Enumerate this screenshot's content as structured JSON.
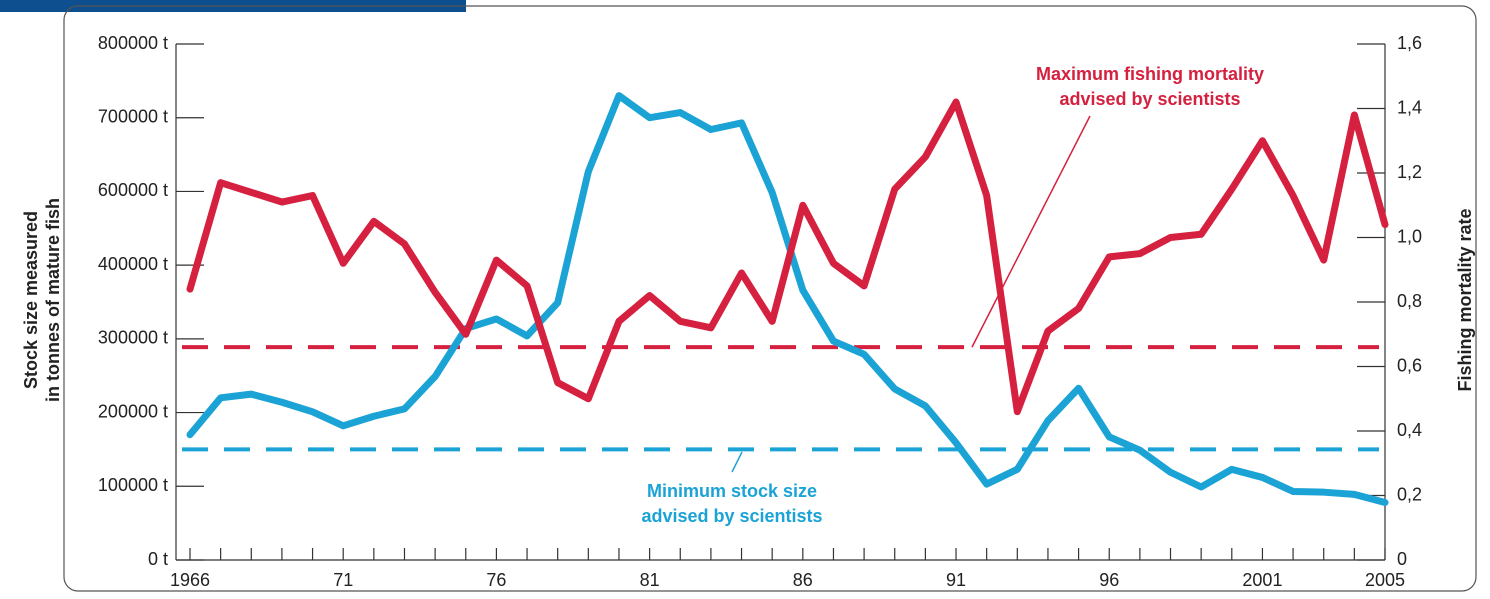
{
  "chart_data": {
    "type": "line",
    "y_label": [
      "Stock size measured",
      "in tonnes of mature fish"
    ],
    "y2_label": "Fishing mortality rate",
    "x": [
      1966,
      1967,
      1968,
      1969,
      1970,
      1971,
      1972,
      1973,
      1974,
      1975,
      1976,
      1977,
      1978,
      1979,
      1980,
      1981,
      1982,
      1983,
      1984,
      1985,
      1986,
      1987,
      1988,
      1989,
      1990,
      1991,
      1992,
      1993,
      1994,
      1995,
      1996,
      1997,
      1998,
      1999,
      2000,
      2001,
      2002,
      2003,
      2004,
      2005
    ],
    "xlim": [
      1966,
      2005
    ],
    "xticks": [
      1966,
      {
        "value": 1971,
        "label": "71"
      },
      {
        "value": 1976,
        "label": "76"
      },
      {
        "value": 1981,
        "label": "81"
      },
      {
        "value": 1986,
        "label": "86"
      },
      {
        "value": 1991,
        "label": "91"
      },
      {
        "value": 1996,
        "label": "96"
      },
      2001,
      2005
    ],
    "ylim": [
      0,
      800000
    ],
    "yticks": [
      {
        "value": 0,
        "label": "0 t"
      },
      {
        "value": 100000,
        "label": "100000 t"
      },
      {
        "value": 200000,
        "label": "200000 t"
      },
      {
        "value": 300000,
        "label": "300000 t"
      },
      {
        "value": 400000,
        "label": "400000 t"
      },
      {
        "value": 600000,
        "label": "600000 t"
      },
      {
        "value": 700000,
        "label": "700000 t"
      },
      {
        "value": 800000,
        "label": "800000 t"
      }
    ],
    "y2lim": [
      0,
      1.6
    ],
    "y2ticks": [
      0,
      {
        "value": 0.2,
        "label": "0,2"
      },
      {
        "value": 0.4,
        "label": "0,4"
      },
      {
        "value": 0.6,
        "label": "0,6"
      },
      {
        "value": 0.8,
        "label": "0,8"
      },
      {
        "value": 1.0,
        "label": "1,0"
      },
      {
        "value": 1.2,
        "label": "1,2"
      },
      {
        "value": 1.4,
        "label": "1,4"
      },
      {
        "value": 1.6,
        "label": "1,6"
      }
    ],
    "series": [
      {
        "color": "#1ba3d6",
        "axis": "y",
        "values": [
          170000,
          220000,
          225000,
          214000,
          201000,
          182000,
          195000,
          205000,
          249000,
          314000,
          327000,
          304000,
          349000,
          627000,
          730000,
          700000,
          707000,
          684000,
          693000,
          597000,
          366000,
          297000,
          279000,
          232000,
          209000,
          159000,
          103000,
          123000,
          189000,
          233000,
          167000,
          149000,
          119000,
          99000,
          123000,
          112000,
          93000,
          92000,
          89000,
          78000
        ]
      },
      {
        "color": "#d5203f",
        "axis": "y2",
        "values": [
          0.84,
          1.17,
          1.14,
          1.11,
          1.13,
          0.92,
          1.05,
          0.98,
          0.83,
          0.7,
          0.93,
          0.85,
          0.55,
          0.5,
          0.74,
          0.82,
          0.74,
          0.72,
          0.89,
          0.74,
          1.1,
          0.92,
          0.85,
          1.15,
          1.25,
          1.42,
          1.13,
          0.46,
          0.71,
          0.78,
          0.94,
          0.95,
          1.0,
          1.01,
          1.15,
          1.3,
          1.13,
          0.93,
          1.38,
          1.04
        ]
      }
    ],
    "reference_lines": [
      {
        "axis": "y2",
        "value": 0.66,
        "color": "#d5203f",
        "label": [
          "Maximum fishing mortality",
          "advised by scientists"
        ]
      },
      {
        "axis": "y",
        "value": 150000,
        "color": "#1ba3d6",
        "label": [
          "Minimum stock size",
          "advised by scientists"
        ]
      }
    ]
  }
}
